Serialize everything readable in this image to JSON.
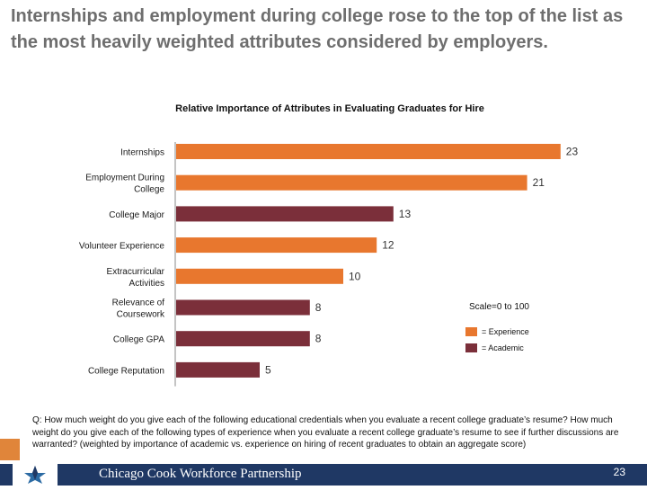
{
  "headline": "Internships and employment during college rose to the top of the list as the most heavily weighted attributes considered by employers.",
  "chart_data": {
    "type": "bar",
    "orientation": "horizontal",
    "title": "Relative Importance of Attributes in Evaluating Graduates for Hire",
    "categories": [
      [
        "Internships"
      ],
      [
        "Employment During",
        "College"
      ],
      [
        "College Major"
      ],
      [
        "Volunteer Experience"
      ],
      [
        "Extracurricular",
        "Activities"
      ],
      [
        "Relevance of",
        "Coursework"
      ],
      [
        "College GPA"
      ],
      [
        "College Reputation"
      ]
    ],
    "values": [
      23,
      21,
      13,
      12,
      10,
      8,
      8,
      5
    ],
    "groups": [
      "experience",
      "experience",
      "academic",
      "experience",
      "experience",
      "academic",
      "academic",
      "academic"
    ],
    "xlim": [
      0,
      25
    ],
    "grid": false,
    "scale_note": "Scale=0 to 100",
    "legend": [
      {
        "key": "experience",
        "label": "= Experience",
        "color": "#e8772e"
      },
      {
        "key": "academic",
        "label": "= Academic",
        "color": "#7b2f3a"
      }
    ],
    "legend_position": "right"
  },
  "footnote": "Q: How much weight do you give each of the following educational credentials when you evaluate a recent college graduate’s resume? How much weight do you give each of the following types of experience when you evaluate a recent college graduate’s resume to see if further discussions are warranted? (weighted by importance of academic vs. experience on hiring of recent graduates to obtain an aggregate score)",
  "footer": {
    "org": "Chicago Cook Workforce Partnership",
    "page_number": "23",
    "logo": "star-logo-icon"
  }
}
